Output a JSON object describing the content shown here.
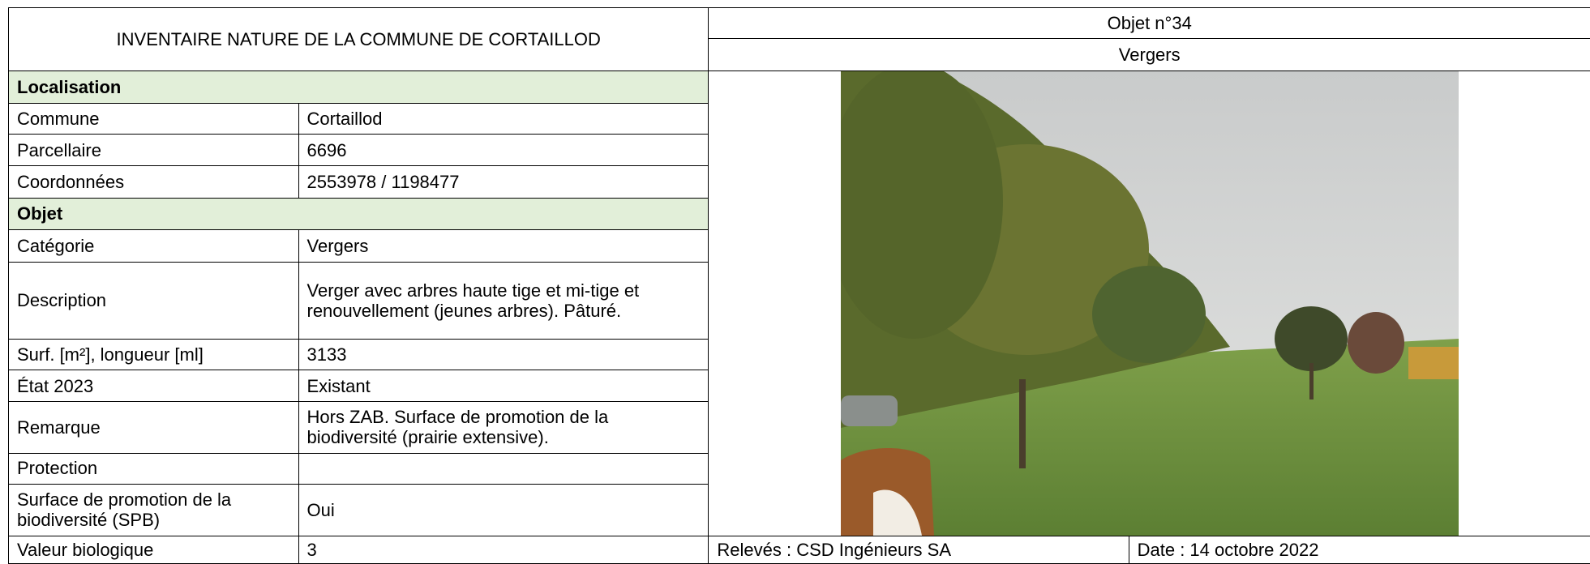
{
  "header": {
    "title": "INVENTAIRE NATURE DE LA COMMUNE DE CORTAILLOD",
    "object_number": "Objet n°34",
    "object_name": "Vergers"
  },
  "sections": [
    {
      "title": "Localisation",
      "rows": [
        [
          "Commune",
          "Cortaillod"
        ],
        [
          "Parcellaire",
          "6696"
        ],
        [
          "Coordonnées",
          "2553978 / 1198477"
        ]
      ]
    },
    {
      "title": "Objet",
      "rows": [
        [
          "Catégorie",
          "Vergers"
        ],
        [
          "Description",
          "Verger avec arbres haute tige et mi-tige et renouvellement (jeunes arbres). Pâturé."
        ],
        [
          "Surf. [m²], longueur [ml]",
          "3133"
        ],
        [
          "État 2023",
          "Existant"
        ],
        [
          "Remarque",
          "Hors ZAB. Surface de promotion de la biodiversité (prairie extensive)."
        ],
        [
          "Protection",
          ""
        ],
        [
          "Surface de promotion de la biodiversité (SPB)",
          "Oui"
        ],
        [
          "Valeur biologique",
          "3"
        ]
      ]
    }
  ],
  "footer": {
    "releves": "Relevés : CSD Ingénieurs SA",
    "date": "Date : 14 octobre 2022"
  }
}
